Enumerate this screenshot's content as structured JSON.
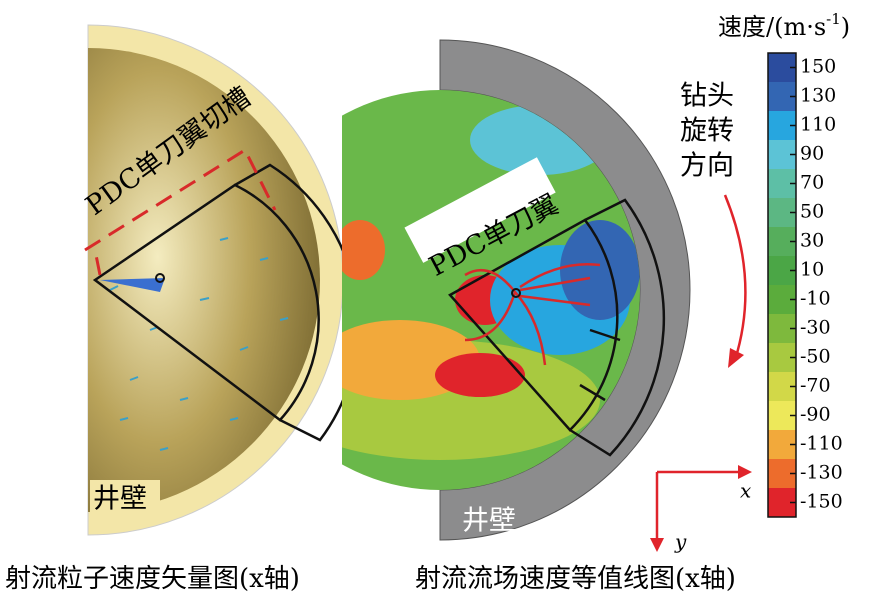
{
  "left_panel": {
    "groove_label": "PDC单刀翼切槽",
    "wall_label": "井壁",
    "caption": "射流粒子速度矢量图(x轴)"
  },
  "right_panel": {
    "blade_label": "PDC单刀翼",
    "wall_label": "井壁",
    "caption": "射流流场速度等值线图(x轴)"
  },
  "rotation_label": [
    "钻头",
    "旋转",
    "方向"
  ],
  "axes": {
    "x": "x",
    "y": "y"
  },
  "colorbar": {
    "title": "速度/(m·s",
    "title_sup": "-1",
    "title_end": ")",
    "lim": [
      -160,
      160
    ],
    "ticks": [
      150,
      130,
      110,
      90,
      70,
      50,
      30,
      10,
      -10,
      -30,
      -50,
      -70,
      -90,
      -110,
      -130,
      -150
    ],
    "colors": [
      "#2b4c9e",
      "#3366b3",
      "#27a6df",
      "#5cc3d6",
      "#5dbfa6",
      "#5cb783",
      "#56ae5c",
      "#4ba646",
      "#5bac3c",
      "#7eb93d",
      "#a8c940",
      "#d2d848",
      "#ede85a",
      "#f2a93b",
      "#ed6c2c",
      "#e0242b"
    ]
  }
}
